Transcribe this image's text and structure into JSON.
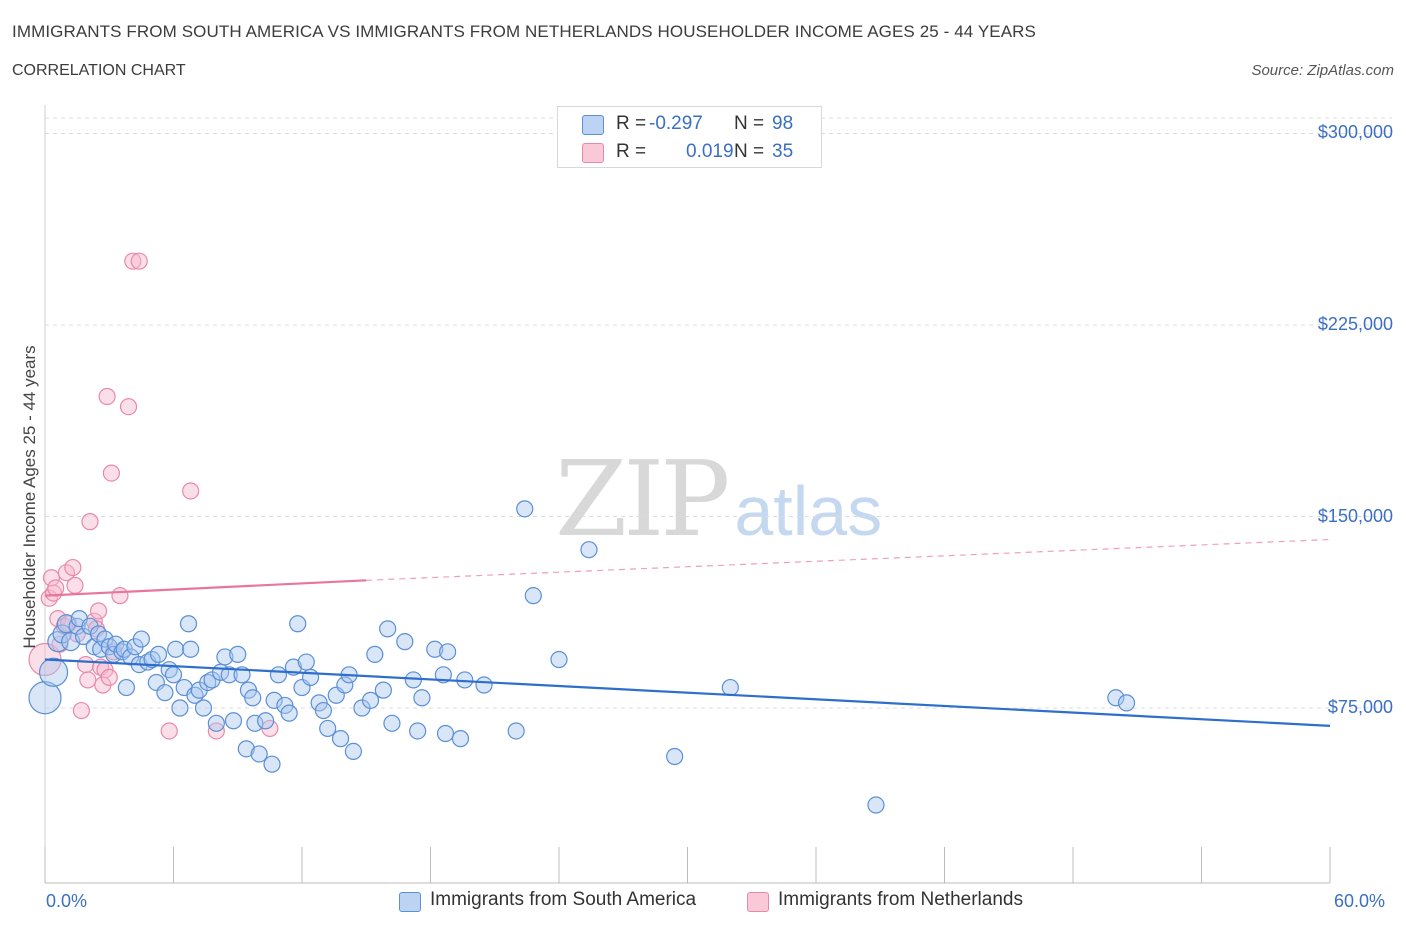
{
  "header": {
    "title": "IMMIGRANTS FROM SOUTH AMERICA VS IMMIGRANTS FROM NETHERLANDS HOUSEHOLDER INCOME AGES 25 - 44 YEARS",
    "subtitle": "CORRELATION CHART",
    "source": "Source: ZipAtlas.com"
  },
  "watermark": {
    "zip": "ZIP",
    "atlas": "atlas"
  },
  "colors": {
    "blue_fill": "#a9c8f0",
    "blue_stroke": "#5b8fd6",
    "blue_line": "#2f6fcc",
    "pink_fill": "#f6b8cc",
    "pink_stroke": "#e889a8",
    "pink_line": "#e8769c",
    "grid": "#dcdcdc",
    "tick_text": "#3a6fc4"
  },
  "legend_top": {
    "rows": [
      {
        "r_label": "R =",
        "r_value": "-0.297",
        "n_label": "N =",
        "n_value": "98"
      },
      {
        "r_label": "R =",
        "r_value": "0.019",
        "n_label": "N =",
        "n_value": "35"
      }
    ]
  },
  "legend_bottom": {
    "items": [
      {
        "label": "Immigrants from South America"
      },
      {
        "label": "Immigrants from Netherlands"
      }
    ]
  },
  "chart_data": {
    "type": "scatter",
    "title": "IMMIGRANTS FROM SOUTH AMERICA VS IMMIGRANTS FROM NETHERLANDS HOUSEHOLDER INCOME AGES 25 - 44 YEARS",
    "xlabel": "",
    "ylabel": "Householder Income Ages 25 - 44 years",
    "xlim": [
      0,
      60
    ],
    "ylim": [
      5000,
      305000
    ],
    "x_tick_labels": [
      "0.0%",
      "60.0%"
    ],
    "y_ticks": [
      75000,
      150000,
      225000,
      300000
    ],
    "y_tick_labels": [
      "$75,000",
      "$150,000",
      "$225,000",
      "$300,000"
    ],
    "grid": true,
    "series": [
      {
        "name": "Immigrants from South America",
        "r": -0.297,
        "n": 98,
        "trend": {
          "x": [
            0,
            60
          ],
          "y": [
            94000,
            68000
          ],
          "style": "solid"
        },
        "points": [
          [
            0.0,
            79000,
            16
          ],
          [
            0.4,
            89000,
            14
          ],
          [
            0.6,
            101000,
            10
          ],
          [
            0.8,
            104000,
            9
          ],
          [
            1.0,
            108000,
            9
          ],
          [
            1.2,
            101000,
            9
          ],
          [
            1.5,
            107000,
            8
          ],
          [
            1.6,
            110000,
            8
          ],
          [
            1.8,
            103000,
            8
          ],
          [
            2.1,
            107000,
            8
          ],
          [
            2.3,
            99000,
            8
          ],
          [
            2.5,
            104000,
            8
          ],
          [
            2.6,
            98000,
            8
          ],
          [
            2.8,
            102000,
            8
          ],
          [
            3.0,
            99000,
            8
          ],
          [
            3.2,
            96000,
            8
          ],
          [
            3.3,
            100000,
            8
          ],
          [
            3.6,
            97000,
            8
          ],
          [
            3.7,
            98000,
            8
          ],
          [
            3.8,
            83000,
            8
          ],
          [
            4.0,
            95000,
            8
          ],
          [
            4.2,
            99000,
            8
          ],
          [
            4.4,
            92000,
            8
          ],
          [
            4.5,
            102000,
            8
          ],
          [
            4.8,
            93000,
            8
          ],
          [
            5.0,
            94000,
            8
          ],
          [
            5.2,
            85000,
            8
          ],
          [
            5.3,
            96000,
            8
          ],
          [
            5.6,
            81000,
            8
          ],
          [
            5.8,
            90000,
            8
          ],
          [
            6.0,
            88000,
            8
          ],
          [
            6.1,
            98000,
            8
          ],
          [
            6.3,
            75000,
            8
          ],
          [
            6.5,
            83000,
            8
          ],
          [
            6.7,
            108000,
            8
          ],
          [
            6.8,
            98000,
            8
          ],
          [
            7.0,
            80000,
            8
          ],
          [
            7.2,
            82000,
            8
          ],
          [
            7.4,
            75000,
            8
          ],
          [
            7.6,
            85000,
            8
          ],
          [
            7.8,
            86000,
            8
          ],
          [
            8.0,
            69000,
            8
          ],
          [
            8.2,
            89000,
            8
          ],
          [
            8.4,
            95000,
            8
          ],
          [
            8.6,
            88000,
            8
          ],
          [
            8.8,
            70000,
            8
          ],
          [
            9.0,
            96000,
            8
          ],
          [
            9.2,
            88000,
            8
          ],
          [
            9.4,
            59000,
            8
          ],
          [
            9.5,
            82000,
            8
          ],
          [
            9.7,
            79000,
            8
          ],
          [
            9.8,
            69000,
            8
          ],
          [
            10.0,
            57000,
            8
          ],
          [
            10.3,
            70000,
            8
          ],
          [
            10.6,
            53000,
            8
          ],
          [
            10.7,
            78000,
            8
          ],
          [
            10.9,
            88000,
            8
          ],
          [
            11.2,
            76000,
            8
          ],
          [
            11.4,
            73000,
            8
          ],
          [
            11.6,
            91000,
            8
          ],
          [
            11.8,
            108000,
            8
          ],
          [
            12.0,
            83000,
            8
          ],
          [
            12.2,
            93000,
            8
          ],
          [
            12.4,
            87000,
            8
          ],
          [
            12.8,
            77000,
            8
          ],
          [
            13.0,
            74000,
            8
          ],
          [
            13.2,
            67000,
            8
          ],
          [
            13.6,
            80000,
            8
          ],
          [
            13.8,
            63000,
            8
          ],
          [
            14.0,
            84000,
            8
          ],
          [
            14.2,
            88000,
            8
          ],
          [
            14.4,
            58000,
            8
          ],
          [
            14.8,
            75000,
            8
          ],
          [
            15.2,
            78000,
            8
          ],
          [
            15.4,
            96000,
            8
          ],
          [
            15.8,
            82000,
            8
          ],
          [
            16.0,
            106000,
            8
          ],
          [
            16.2,
            69000,
            8
          ],
          [
            16.8,
            101000,
            8
          ],
          [
            17.2,
            86000,
            8
          ],
          [
            17.4,
            66000,
            8
          ],
          [
            17.6,
            79000,
            8
          ],
          [
            18.2,
            98000,
            8
          ],
          [
            18.6,
            88000,
            8
          ],
          [
            18.7,
            65000,
            8
          ],
          [
            18.8,
            97000,
            8
          ],
          [
            19.4,
            63000,
            8
          ],
          [
            19.6,
            86000,
            8
          ],
          [
            20.5,
            84000,
            8
          ],
          [
            22.0,
            66000,
            8
          ],
          [
            22.4,
            153000,
            8
          ],
          [
            22.8,
            119000,
            8
          ],
          [
            24.0,
            94000,
            8
          ],
          [
            25.4,
            137000,
            8
          ],
          [
            29.4,
            56000,
            8
          ],
          [
            32.0,
            83000,
            8
          ],
          [
            38.8,
            37000,
            8
          ],
          [
            50.0,
            79000,
            8
          ],
          [
            50.5,
            77000,
            8
          ]
        ]
      },
      {
        "name": "Immigrants from Netherlands",
        "r": 0.019,
        "n": 35,
        "trend": {
          "x": [
            0,
            15
          ],
          "y": [
            119000,
            125000
          ],
          "style": "solid",
          "extension_x": [
            15,
            60
          ],
          "extension_y": [
            125000,
            141000
          ],
          "extension_style": "dashed"
        },
        "points": [
          [
            0.0,
            94000,
            16
          ],
          [
            0.2,
            118000,
            8
          ],
          [
            0.3,
            126000,
            8
          ],
          [
            0.4,
            120000,
            8
          ],
          [
            0.5,
            122000,
            8
          ],
          [
            0.6,
            110000,
            8
          ],
          [
            0.7,
            100000,
            8
          ],
          [
            0.9,
            107000,
            8
          ],
          [
            1.0,
            128000,
            8
          ],
          [
            1.1,
            108000,
            8
          ],
          [
            1.3,
            130000,
            8
          ],
          [
            1.4,
            123000,
            8
          ],
          [
            1.5,
            104000,
            8
          ],
          [
            1.7,
            74000,
            8
          ],
          [
            1.9,
            92000,
            8
          ],
          [
            2.0,
            86000,
            8
          ],
          [
            2.1,
            148000,
            8
          ],
          [
            2.3,
            109000,
            8
          ],
          [
            2.4,
            106000,
            8
          ],
          [
            2.5,
            113000,
            8
          ],
          [
            2.6,
            91000,
            8
          ],
          [
            2.7,
            84000,
            8
          ],
          [
            2.8,
            90000,
            8
          ],
          [
            2.9,
            197000,
            8
          ],
          [
            3.0,
            87000,
            8
          ],
          [
            3.1,
            167000,
            8
          ],
          [
            3.2,
            97000,
            8
          ],
          [
            3.5,
            119000,
            8
          ],
          [
            3.9,
            193000,
            8
          ],
          [
            4.1,
            250000,
            8
          ],
          [
            4.4,
            250000,
            8
          ],
          [
            5.8,
            66000,
            8
          ],
          [
            6.8,
            160000,
            8
          ],
          [
            8.0,
            66000,
            8
          ],
          [
            10.5,
            67000,
            8
          ]
        ]
      }
    ]
  }
}
